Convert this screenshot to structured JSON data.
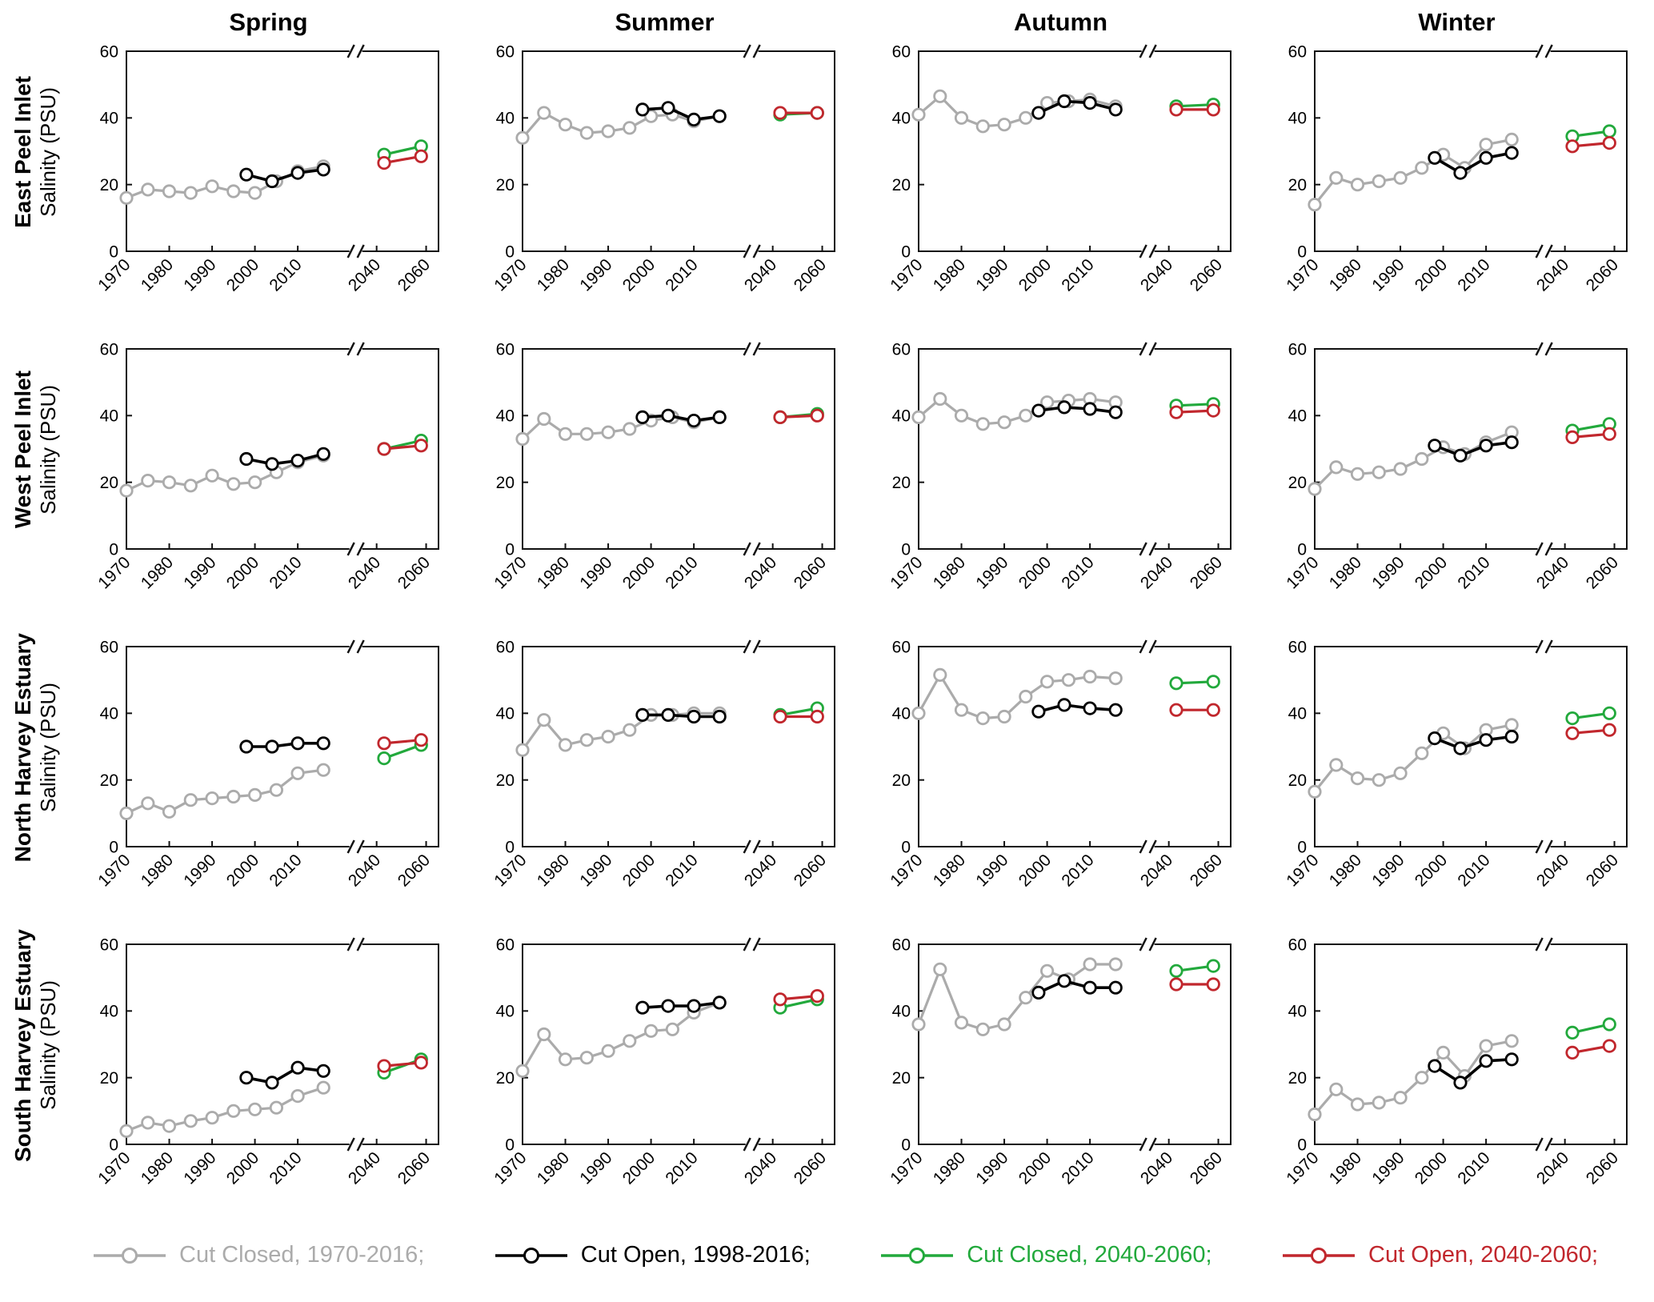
{
  "chart_data": {
    "type": "line",
    "grid": {
      "rows": [
        "East Peel Inlet",
        "West Peel Inlet",
        "North Harvey Estuary",
        "South Harvey Estuary"
      ],
      "cols": [
        "Spring",
        "Summer",
        "Autumn",
        "Winter"
      ]
    },
    "ylabel": "Salinity (PSU)",
    "ylim": [
      0,
      60
    ],
    "yticks": [
      0,
      20,
      40,
      60
    ],
    "xticks_main": [
      1970,
      1980,
      1990,
      2000,
      2010
    ],
    "xticks_future": [
      2040,
      2060
    ],
    "axis_break": true,
    "break_symbol": "//",
    "series_meta": [
      {
        "key": "cut_closed_hist",
        "label": "Cut Closed, 1970-2016;",
        "color": "#ABABAB",
        "x": [
          1970,
          1975,
          1980,
          1985,
          1990,
          1995,
          2000,
          2005,
          2010,
          2016
        ]
      },
      {
        "key": "cut_open_hist",
        "label": "Cut Open, 1998-2016;",
        "color": "#000000",
        "x": [
          1998,
          2004,
          2010,
          2016
        ]
      },
      {
        "key": "cut_closed_future",
        "label": "Cut Closed, 2040-2060;",
        "color": "#22A93C",
        "x": [
          2043,
          2058
        ]
      },
      {
        "key": "cut_open_future",
        "label": "Cut Open, 2040-2060;",
        "color": "#C1272D",
        "x": [
          2043,
          2058
        ]
      }
    ],
    "panels": [
      {
        "location": "East Peel Inlet",
        "season": "Spring",
        "cut_closed_hist": [
          16,
          18.5,
          18,
          17.5,
          19.5,
          18,
          17.5,
          21,
          24,
          25.5
        ],
        "cut_open_hist": [
          23,
          21,
          23.5,
          24.5
        ],
        "cut_closed_future": [
          29,
          31.5
        ],
        "cut_open_future": [
          26.5,
          28.5
        ]
      },
      {
        "location": "East Peel Inlet",
        "season": "Summer",
        "cut_closed_hist": [
          34,
          41.5,
          38,
          35.5,
          36,
          37,
          40.5,
          41,
          39,
          40.5
        ],
        "cut_open_hist": [
          42.5,
          43,
          39.5,
          40.5
        ],
        "cut_closed_future": [
          41,
          41.5
        ],
        "cut_open_future": [
          41.5,
          41.5
        ]
      },
      {
        "location": "East Peel Inlet",
        "season": "Autumn",
        "cut_closed_hist": [
          41,
          46.5,
          40,
          37.5,
          38,
          40,
          44.5,
          45,
          45.5,
          43.5
        ],
        "cut_open_hist": [
          41.5,
          45,
          44.5,
          42.5
        ],
        "cut_closed_future": [
          43.5,
          44
        ],
        "cut_open_future": [
          42.5,
          42.5
        ]
      },
      {
        "location": "East Peel Inlet",
        "season": "Winter",
        "cut_closed_hist": [
          14,
          22,
          20,
          21,
          22,
          25,
          29,
          25,
          32,
          33.5
        ],
        "cut_open_hist": [
          28,
          23.5,
          28,
          29.5
        ],
        "cut_closed_future": [
          34.5,
          36
        ],
        "cut_open_future": [
          31.5,
          32.5
        ]
      },
      {
        "location": "West Peel Inlet",
        "season": "Spring",
        "cut_closed_hist": [
          17.5,
          20.5,
          20,
          19,
          22,
          19.5,
          20,
          23,
          26,
          28
        ],
        "cut_open_hist": [
          27,
          25.5,
          26.5,
          28.5
        ],
        "cut_closed_future": [
          30,
          32.5
        ],
        "cut_open_future": [
          30,
          31
        ]
      },
      {
        "location": "West Peel Inlet",
        "season": "Summer",
        "cut_closed_hist": [
          33,
          39,
          34.5,
          34.5,
          35,
          36,
          38.5,
          39.5,
          38,
          39.5
        ],
        "cut_open_hist": [
          39.5,
          40,
          38.5,
          39.5
        ],
        "cut_closed_future": [
          39.5,
          40.5
        ],
        "cut_open_future": [
          39.5,
          40
        ]
      },
      {
        "location": "West Peel Inlet",
        "season": "Autumn",
        "cut_closed_hist": [
          39.5,
          45,
          40,
          37.5,
          38,
          40,
          44,
          44.5,
          45,
          44
        ],
        "cut_open_hist": [
          41.5,
          42.5,
          42,
          41
        ],
        "cut_closed_future": [
          43,
          43.5
        ],
        "cut_open_future": [
          41,
          41.5
        ]
      },
      {
        "location": "West Peel Inlet",
        "season": "Winter",
        "cut_closed_hist": [
          18,
          24.5,
          22.5,
          23,
          24,
          27,
          30.5,
          28.5,
          32,
          35
        ],
        "cut_open_hist": [
          31,
          28,
          31,
          32
        ],
        "cut_closed_future": [
          35.5,
          37.5
        ],
        "cut_open_future": [
          33.5,
          34.5
        ]
      },
      {
        "location": "North Harvey Estuary",
        "season": "Spring",
        "cut_closed_hist": [
          10,
          13,
          10.5,
          14,
          14.5,
          15,
          15.5,
          17,
          22,
          23
        ],
        "cut_open_hist": [
          30,
          30,
          31,
          31
        ],
        "cut_closed_future": [
          26.5,
          30.5
        ],
        "cut_open_future": [
          31,
          32
        ]
      },
      {
        "location": "North Harvey Estuary",
        "season": "Summer",
        "cut_closed_hist": [
          29,
          38,
          30.5,
          32,
          33,
          35,
          39.5,
          39.5,
          40,
          40
        ],
        "cut_open_hist": [
          39.5,
          39.5,
          39,
          39
        ],
        "cut_closed_future": [
          39.5,
          41.5
        ],
        "cut_open_future": [
          39,
          39
        ]
      },
      {
        "location": "North Harvey Estuary",
        "season": "Autumn",
        "cut_closed_hist": [
          40,
          51.5,
          41,
          38.5,
          39,
          45,
          49.5,
          50,
          51,
          50.5
        ],
        "cut_open_hist": [
          40.5,
          42.5,
          41.5,
          41
        ],
        "cut_closed_future": [
          49,
          49.5
        ],
        "cut_open_future": [
          41,
          41
        ]
      },
      {
        "location": "North Harvey Estuary",
        "season": "Winter",
        "cut_closed_hist": [
          16.5,
          24.5,
          20.5,
          20,
          22,
          28,
          34,
          29.5,
          35,
          36.5
        ],
        "cut_open_hist": [
          32.5,
          29.5,
          32,
          33
        ],
        "cut_closed_future": [
          38.5,
          40
        ],
        "cut_open_future": [
          34,
          35
        ]
      },
      {
        "location": "South Harvey Estuary",
        "season": "Spring",
        "cut_closed_hist": [
          4,
          6.5,
          5.5,
          7,
          8,
          10,
          10.5,
          11,
          14.5,
          17
        ],
        "cut_open_hist": [
          20,
          18.5,
          23,
          22
        ],
        "cut_closed_future": [
          21.5,
          25.5
        ],
        "cut_open_future": [
          23.5,
          24.5
        ]
      },
      {
        "location": "South Harvey Estuary",
        "season": "Summer",
        "cut_closed_hist": [
          22,
          33,
          25.5,
          26,
          28,
          31,
          34,
          34.5,
          39.5,
          42.5
        ],
        "cut_open_hist": [
          41,
          41.5,
          41.5,
          42.5
        ],
        "cut_closed_future": [
          41,
          43.5
        ],
        "cut_open_future": [
          43.5,
          44.5
        ]
      },
      {
        "location": "South Harvey Estuary",
        "season": "Autumn",
        "cut_closed_hist": [
          36,
          52.5,
          36.5,
          34.5,
          36,
          44,
          52,
          49.5,
          54,
          54
        ],
        "cut_open_hist": [
          45.5,
          49,
          47,
          47
        ],
        "cut_closed_future": [
          52,
          53.5
        ],
        "cut_open_future": [
          48,
          48
        ]
      },
      {
        "location": "South Harvey Estuary",
        "season": "Winter",
        "cut_closed_hist": [
          9,
          16.5,
          12,
          12.5,
          14,
          20,
          27.5,
          20.5,
          29.5,
          31
        ],
        "cut_open_hist": [
          23.5,
          18.5,
          25,
          25.5
        ],
        "cut_closed_future": [
          33.5,
          36
        ],
        "cut_open_future": [
          27.5,
          29.5
        ]
      }
    ]
  }
}
